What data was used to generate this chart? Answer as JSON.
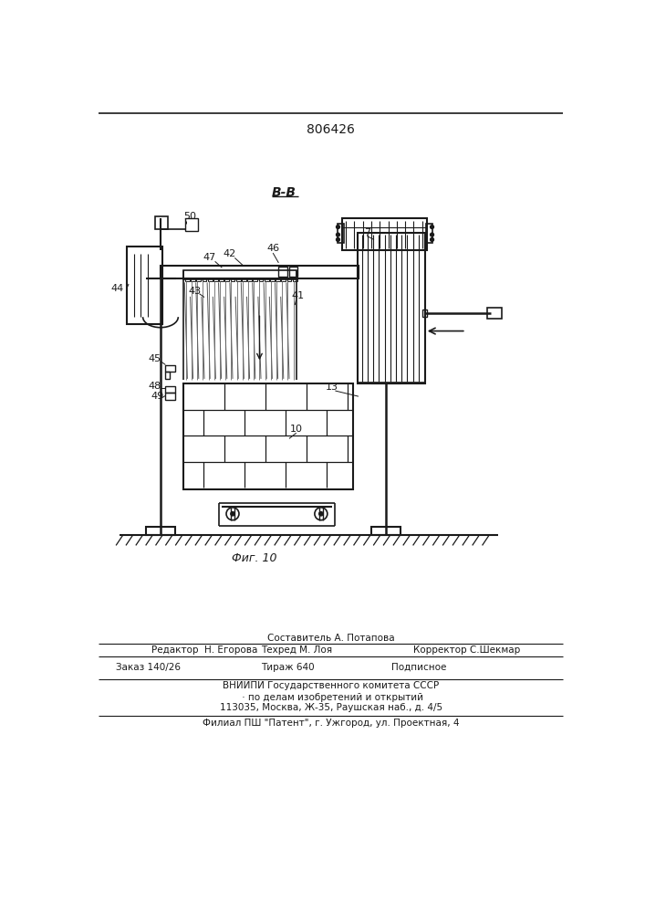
{
  "patent_number": "806426",
  "view_label": "В-В",
  "fig_label": "Фиг. 10",
  "bg_color": "#ffffff",
  "line_color": "#1a1a1a",
  "editor_line": "Редактор  Н. Егорова",
  "compiler_line": "Составитель А. Потапова",
  "techred_line": "Техред М. Лоя",
  "corrector_line": "Корректор С.Шекмар",
  "order_line": "Заказ 140/26",
  "tirazh_line": "Тираж 640",
  "podpisnoe_line": "Подписное",
  "vniip1": "ВНИИПИ Государственного комитета СССР",
  "vniip2": " · по делам изобретений и открытий",
  "vniip3": "113035, Москва, Ж-35, Раушская наб., д. 4/5",
  "filial": "Филиал ПШ \"Патент\", г. Ужгород, ул. Проектная, 4"
}
